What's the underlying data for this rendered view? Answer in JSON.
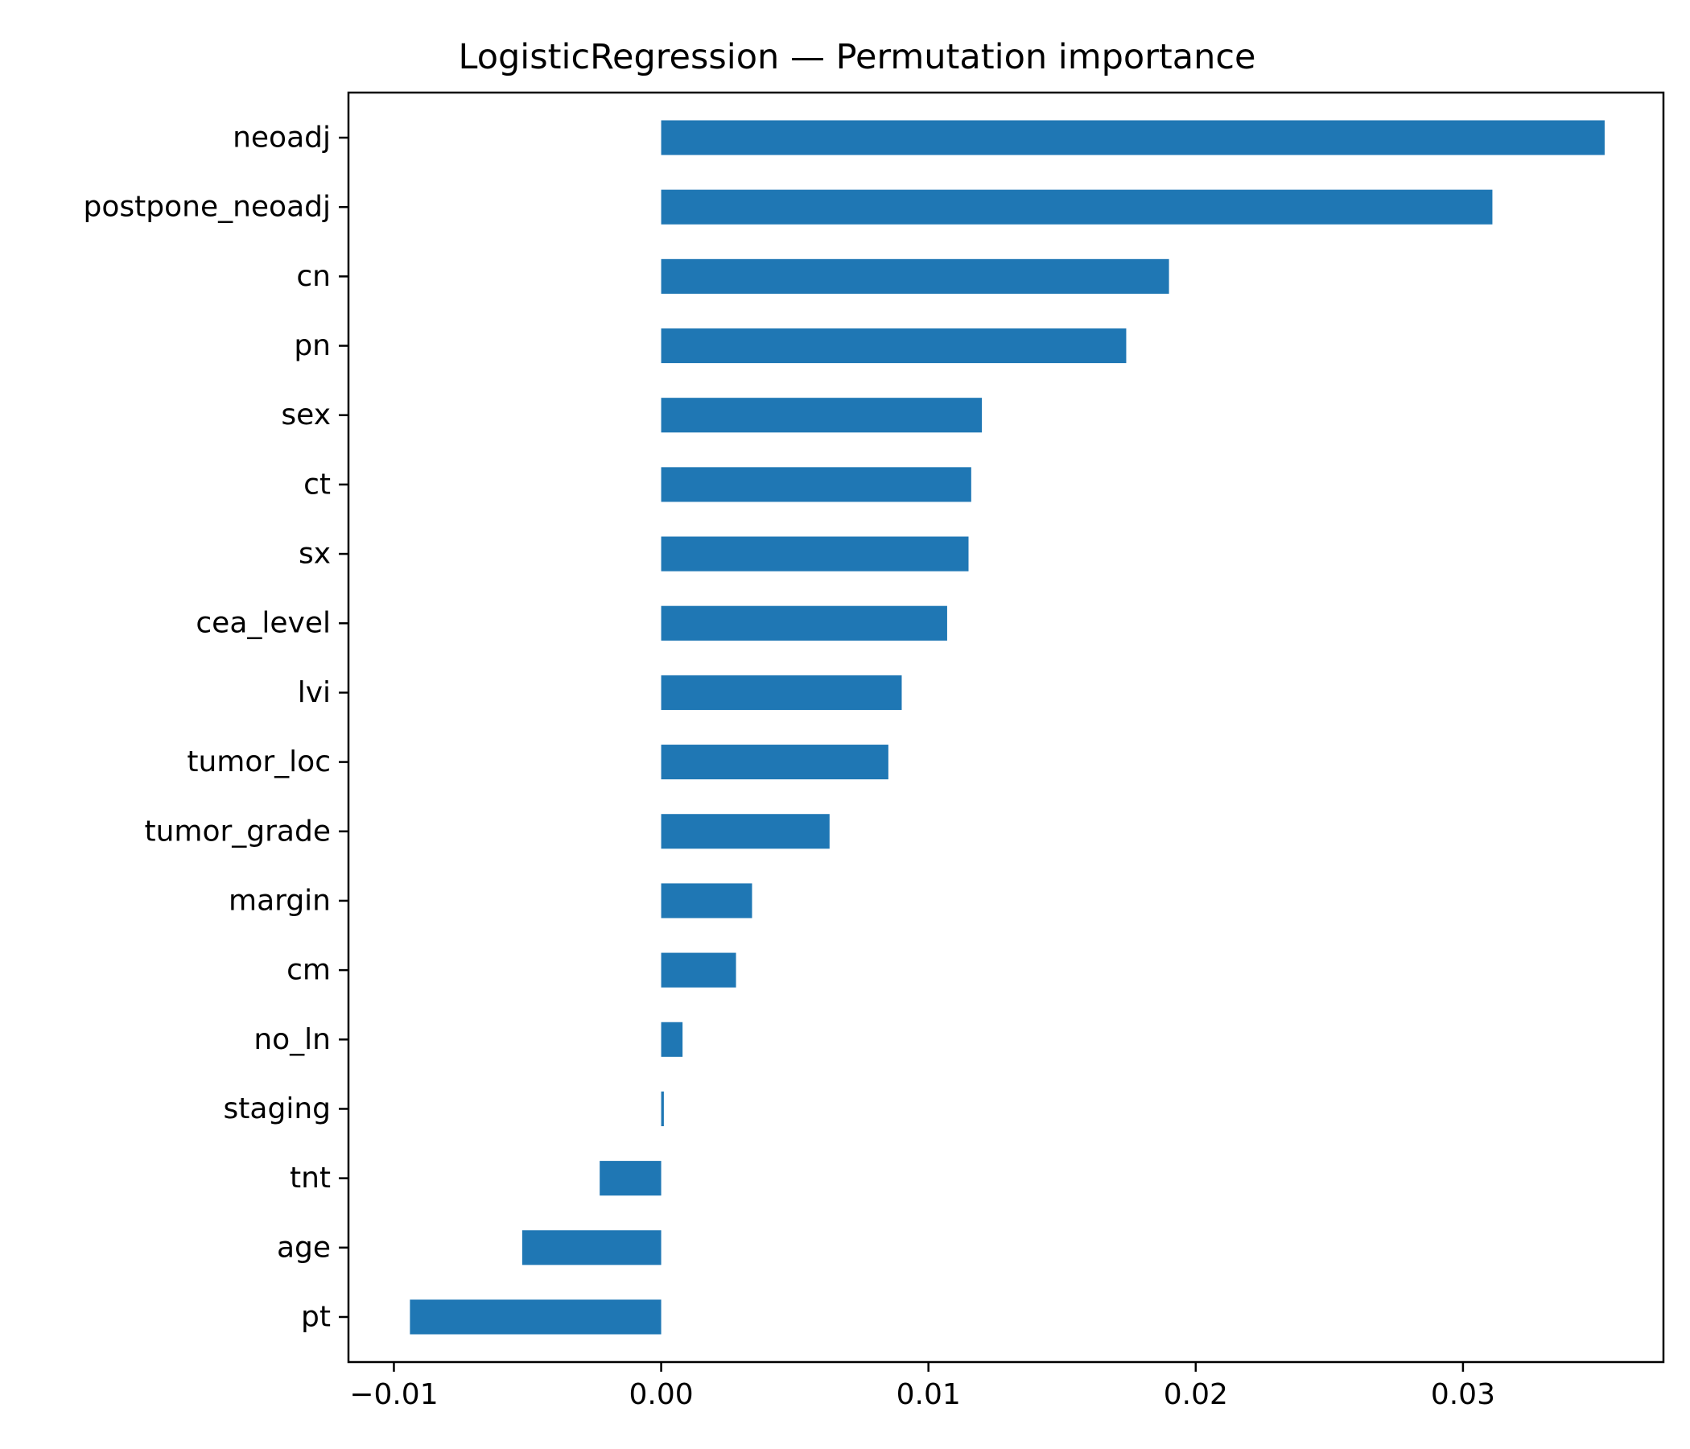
{
  "chart_data": {
    "type": "bar",
    "orientation": "horizontal",
    "title": "LogisticRegression — Permutation importance",
    "xlabel": "",
    "ylabel": "",
    "categories": [
      "neoadj",
      "postpone_neoadj",
      "cn",
      "pn",
      "sex",
      "ct",
      "sx",
      "cea_level",
      "lvi",
      "tumor_loc",
      "tumor_grade",
      "margin",
      "cm",
      "no_ln",
      "staging",
      "tnt",
      "age",
      "pt"
    ],
    "values": [
      0.0353,
      0.0311,
      0.019,
      0.0174,
      0.012,
      0.0116,
      0.0115,
      0.0107,
      0.009,
      0.0085,
      0.0063,
      0.0034,
      0.0028,
      0.0008,
      0.0001,
      -0.0023,
      -0.0052,
      -0.0094
    ],
    "xlim": [
      -0.0117,
      0.0375
    ],
    "xticks": [
      -0.01,
      0.0,
      0.01,
      0.02,
      0.03
    ],
    "xtick_labels": [
      "−0.01",
      "0.00",
      "0.01",
      "0.02",
      "0.03"
    ],
    "bar_color": "#1f77b4",
    "grid": false,
    "legend": "none"
  }
}
